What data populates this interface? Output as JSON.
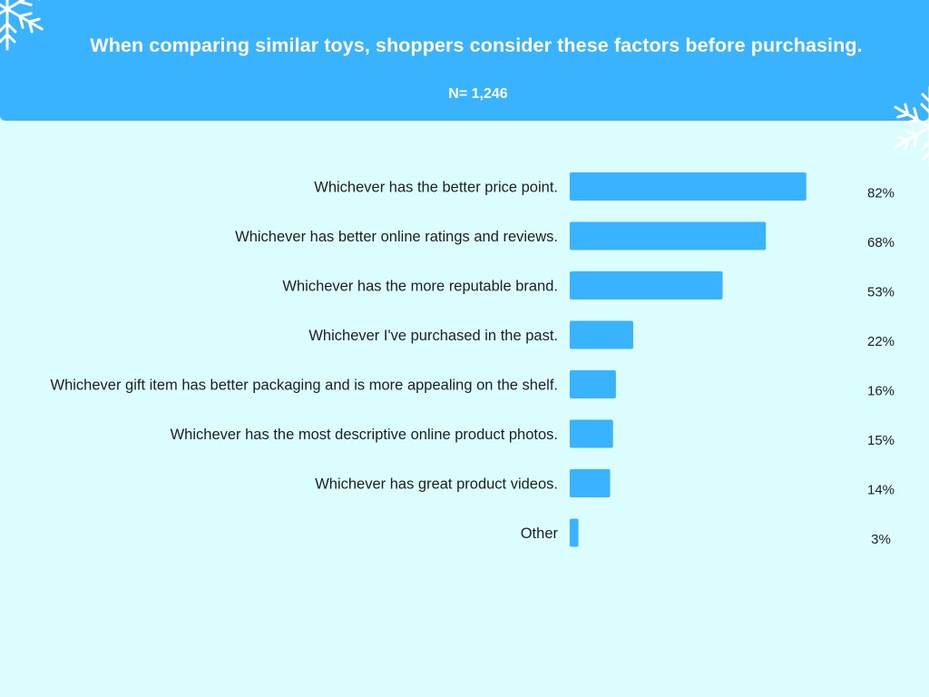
{
  "header": {
    "title": "When comparing similar toys, shoppers consider these factors before purchasing.",
    "subtitle": "N= 1,246"
  },
  "decorations": [
    "snowflake-icon",
    "snowflake-icon"
  ],
  "colors": {
    "header": "#3ab3ff",
    "background": "#dbfdfd",
    "bar": "#3ab3ff",
    "text": "#1f1f1f"
  },
  "chart_data": {
    "type": "bar",
    "orientation": "horizontal",
    "categories": [
      "Whichever has the better price point.",
      "Whichever has better online ratings and reviews.",
      "Whichever has the more reputable brand.",
      "Whichever I've purchased in the past.",
      "Whichever gift item has better packaging and is more appealing on the shelf.",
      "Whichever has the most descriptive online product photos.",
      "Whichever has great product videos.",
      "Other"
    ],
    "values": [
      82,
      68,
      53,
      22,
      16,
      15,
      14,
      3
    ],
    "value_labels": [
      "82%",
      "68%",
      "53%",
      "22%",
      "16%",
      "15%",
      "14%",
      "3%"
    ],
    "unit": "%",
    "xlim": [
      0,
      100
    ],
    "grid": false
  }
}
